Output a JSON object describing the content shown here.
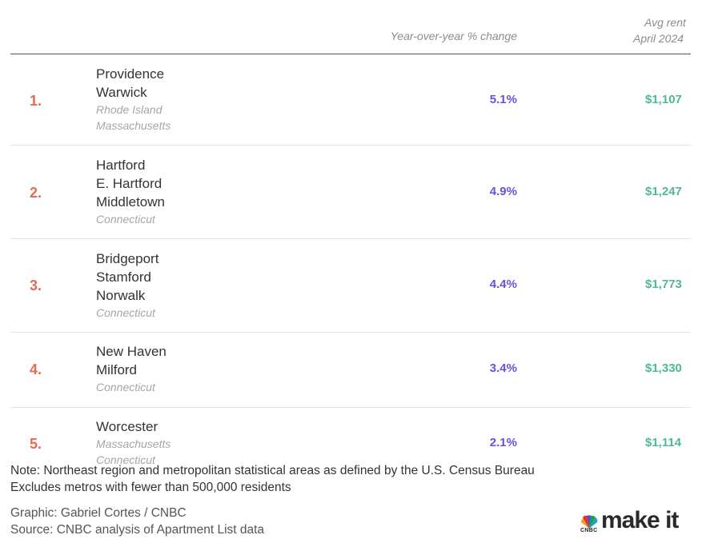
{
  "header": {
    "yoy_label": "Year-over-year % change",
    "rent_label_line1": "Avg rent",
    "rent_label_line2": "April 2024"
  },
  "rows": [
    {
      "rank": "1.",
      "cities": [
        "Providence",
        "Warwick"
      ],
      "states": [
        "Rhode Island",
        "Massachusetts"
      ],
      "yoy": "5.1%",
      "rent": "$1,107"
    },
    {
      "rank": "2.",
      "cities": [
        "Hartford",
        "E. Hartford",
        "Middletown"
      ],
      "states": [
        "Connecticut"
      ],
      "yoy": "4.9%",
      "rent": "$1,247"
    },
    {
      "rank": "3.",
      "cities": [
        "Bridgeport",
        "Stamford",
        "Norwalk"
      ],
      "states": [
        "Connecticut"
      ],
      "yoy": "4.4%",
      "rent": "$1,773"
    },
    {
      "rank": "4.",
      "cities": [
        "New Haven",
        "Milford"
      ],
      "states": [
        "Connecticut"
      ],
      "yoy": "3.4%",
      "rent": "$1,330"
    },
    {
      "rank": "5.",
      "cities": [
        "Worcester"
      ],
      "states": [
        "Massachusetts",
        "Connecticut"
      ],
      "yoy": "2.1%",
      "rent": "$1,114"
    }
  ],
  "note": {
    "line1": "Note: Northeast region and metropolitan statistical areas as defined by the U.S. Census Bureau",
    "line2": "Excludes metros with fewer than 500,000 residents"
  },
  "credits": {
    "graphic": "Graphic: Gabriel Cortes / CNBC",
    "source": "Source: CNBC analysis of Apartment List data"
  },
  "logo": {
    "brand_small": "CNBC",
    "brand_text": "make it"
  },
  "colors": {
    "rank": "#e56a57",
    "yoy": "#6a4fe0",
    "rent": "#4dbb8e"
  }
}
